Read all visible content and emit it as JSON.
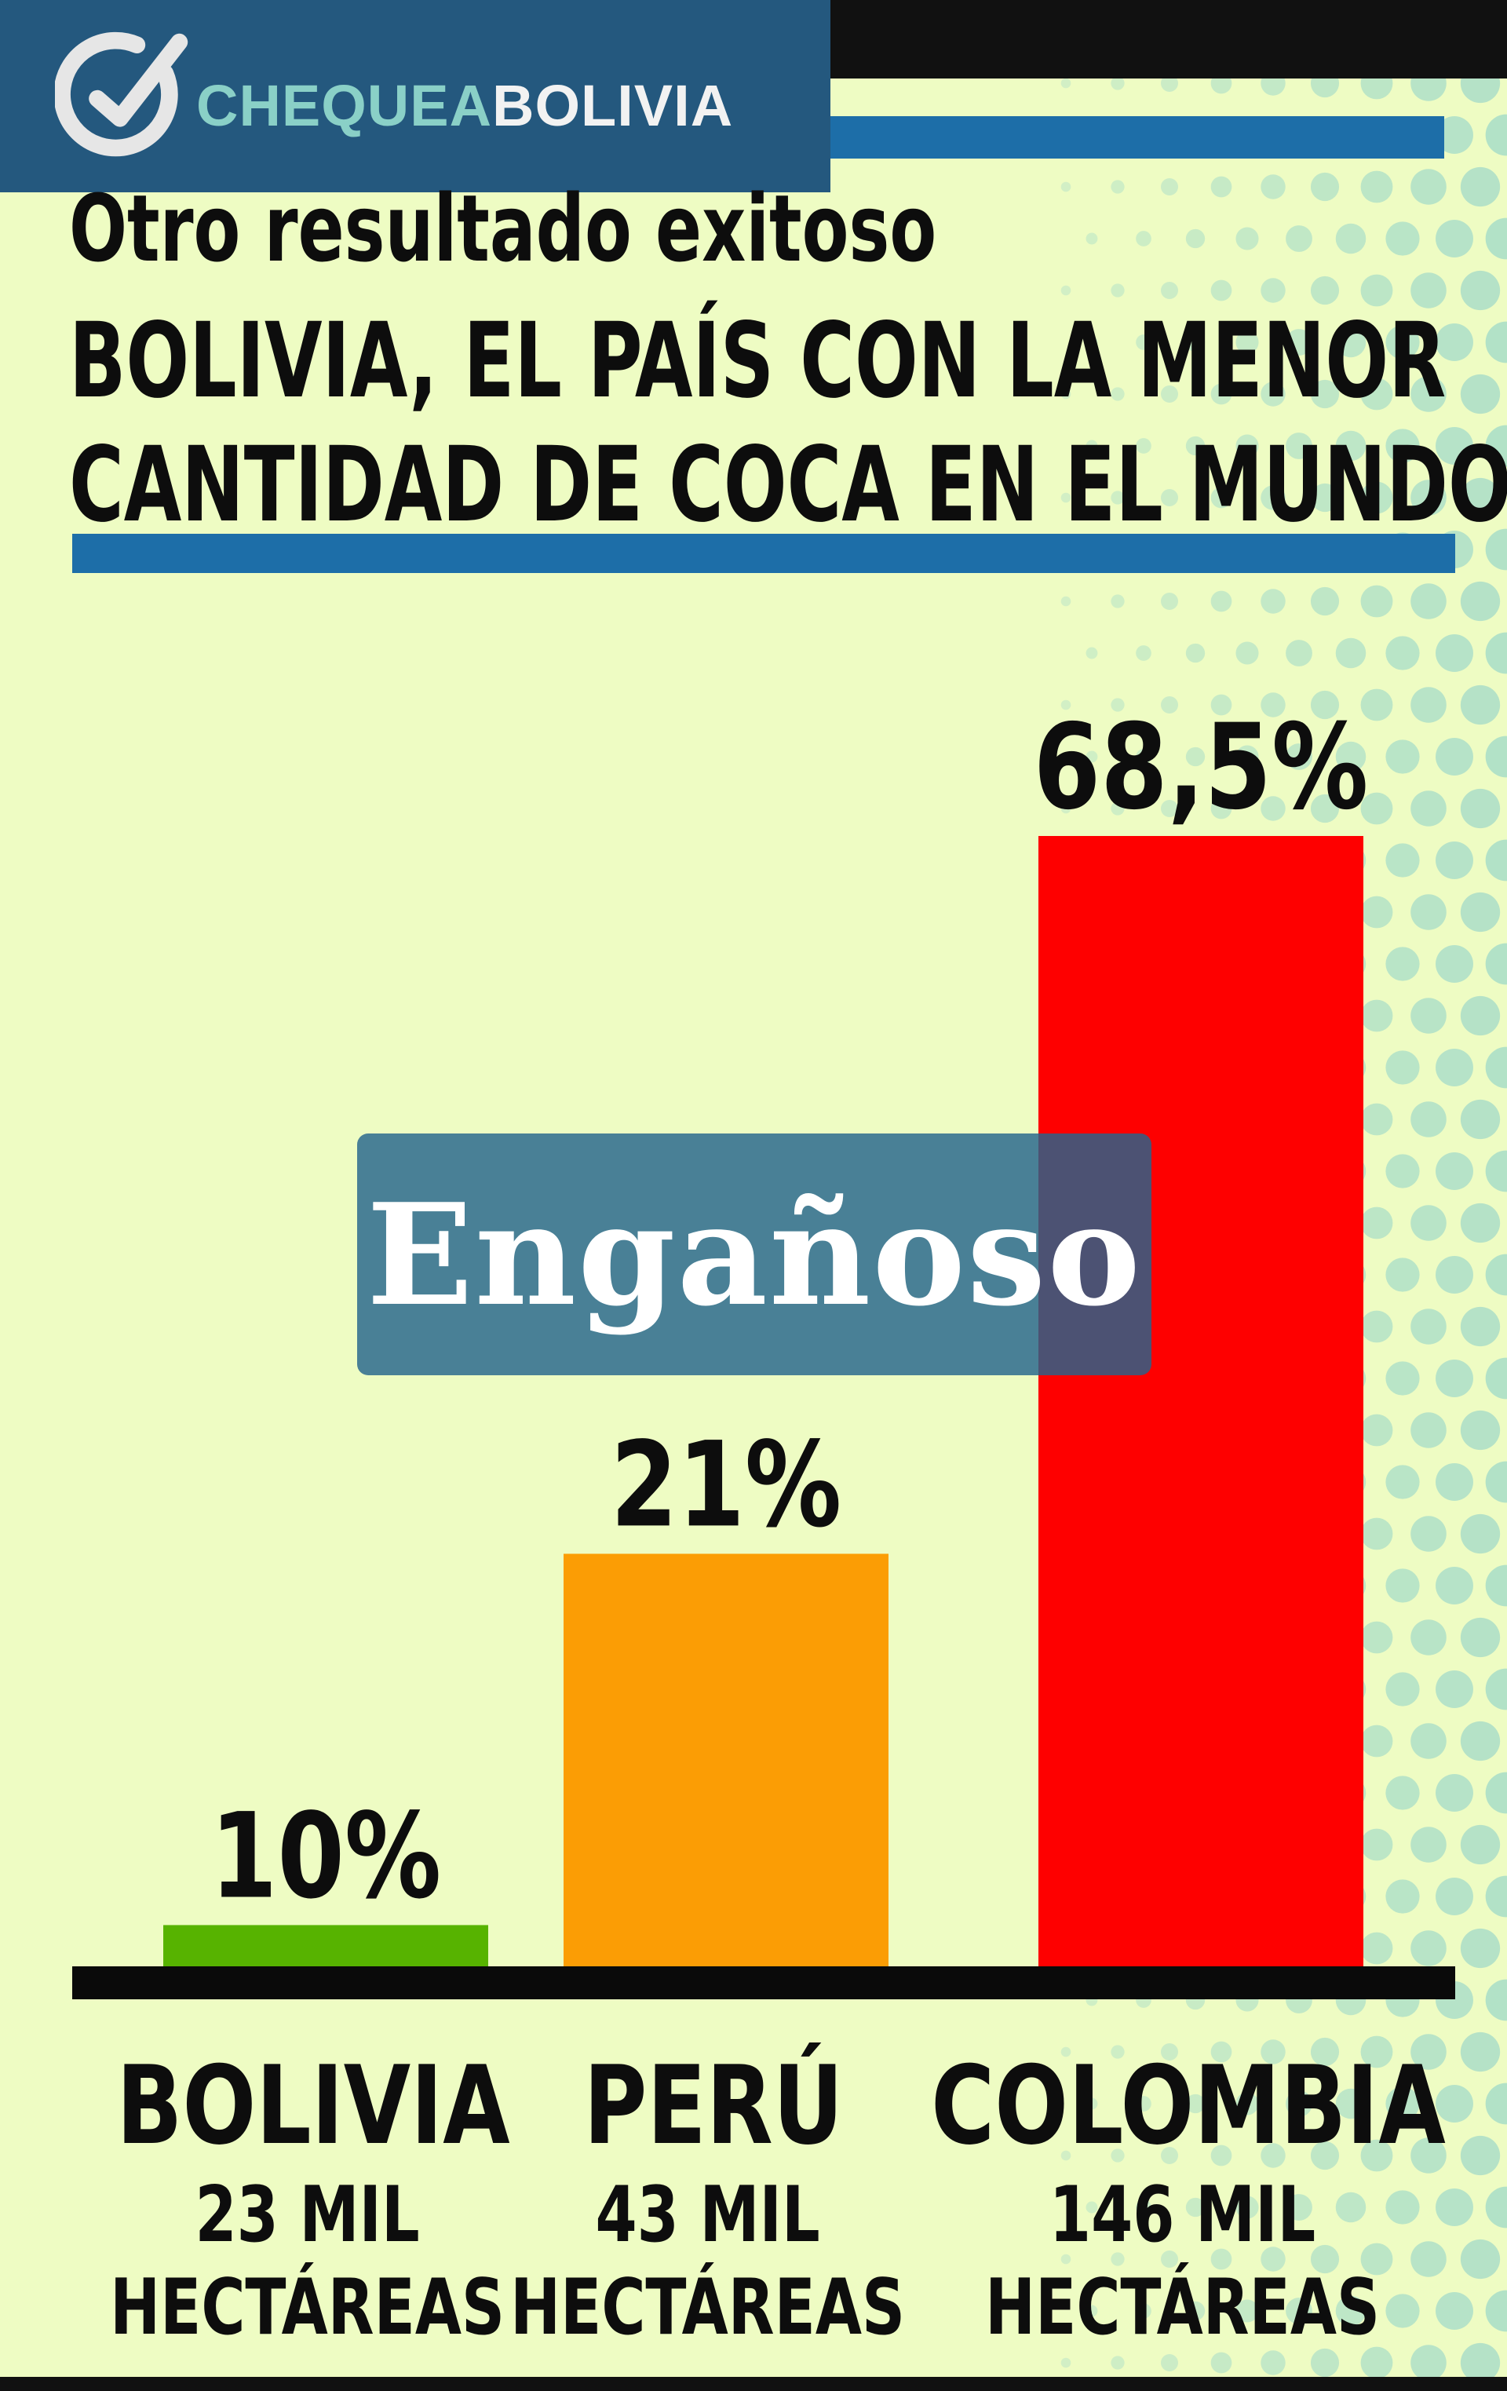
{
  "logo": {
    "part_a": "CHEQUEA",
    "part_b": "BOLIVIA"
  },
  "headline": {
    "line1": "Otro resultado exitoso",
    "line2": "BOLIVIA, EL PAÍS CON LA MENOR",
    "line3": "CANTIDAD DE COCA EN EL MUNDO"
  },
  "stamp": {
    "label": "Engañoso",
    "color": "#25648c"
  },
  "colors": {
    "background": "#eefcc3",
    "accent_blue": "#1d6ea8",
    "dots": "#9fd9c9"
  },
  "chart_data": {
    "type": "bar",
    "categories": [
      "BOLIVIA",
      "PERÚ",
      "COLOMBIA"
    ],
    "subtitles": [
      [
        "23 MIL",
        "HECTÁREAS"
      ],
      [
        "43 MIL",
        "HECTÁREAS"
      ],
      [
        "146 MIL",
        "HECTÁREAS"
      ]
    ],
    "value_labels": [
      "10%",
      "21%",
      "68,5%"
    ],
    "values": [
      10,
      21,
      68.5
    ],
    "displayed_heights_percent": [
      2.5,
      25,
      68.5
    ],
    "colors": [
      "#57b300",
      "#fb9d05",
      "#fe0000"
    ],
    "ylim": [
      0,
      68.5
    ],
    "grid": false,
    "legend": "none"
  }
}
